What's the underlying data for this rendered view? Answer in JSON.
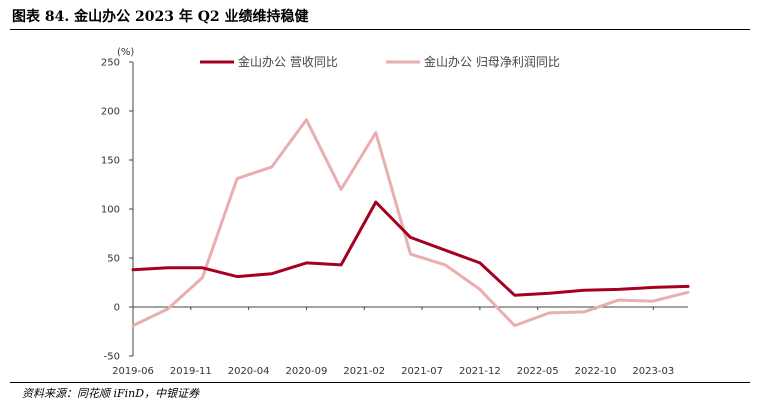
{
  "figure": {
    "title": "图表 84. 金山办公 2023 年 Q2 业绩维持稳健",
    "source": "资料来源：同花顺 iFinD，中银证券"
  },
  "chart_data": {
    "type": "line",
    "ylabel": "(%)",
    "ylim": [
      -50,
      250
    ],
    "yticks": [
      -50,
      0,
      50,
      100,
      150,
      200,
      250
    ],
    "xtick_labels": [
      "2019-06",
      "2019-11",
      "2020-04",
      "2020-09",
      "2021-02",
      "2021-07",
      "2021-12",
      "2022-05",
      "2022-10",
      "2023-03"
    ],
    "grid": false,
    "legend_position": "top",
    "x": [
      "2019-06",
      "2019-09",
      "2019-12",
      "2020-03",
      "2020-06",
      "2020-09",
      "2020-12",
      "2021-03",
      "2021-06",
      "2021-09",
      "2021-12",
      "2022-03",
      "2022-06",
      "2022-09",
      "2022-12",
      "2023-03",
      "2023-06"
    ],
    "series": [
      {
        "name": "金山办公 营收同比",
        "color": "#a50021",
        "values": [
          38,
          40,
          40,
          31,
          34,
          45,
          43,
          107,
          71,
          58,
          45,
          12,
          14,
          17,
          18,
          20,
          21
        ]
      },
      {
        "name": "金山办公 归母净利润同比",
        "color": "#e8aeb0",
        "values": [
          -19,
          -2,
          30,
          131,
          143,
          191,
          120,
          178,
          54,
          43,
          18,
          -19,
          -6,
          -5,
          7,
          6,
          15
        ]
      }
    ]
  }
}
